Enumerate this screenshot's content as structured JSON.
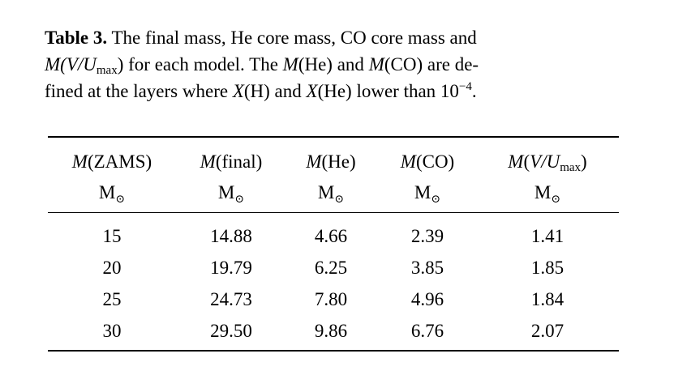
{
  "caption": {
    "label": "Table 3.",
    "line1_text": " The final mass, He core mass, CO core mass and",
    "line2_a": "M",
    "line2_b": "(V/U",
    "line2_c": "max",
    "line2_d": ") for each model. The ",
    "line2_e": "M",
    "line2_f": "(He) and ",
    "line2_g": "M",
    "line2_h": "(CO) are de-",
    "line3_a": "fined at the layers where ",
    "line3_b": "X",
    "line3_c": "(H) and ",
    "line3_d": "X",
    "line3_e": "(He) lower than 10",
    "line3_exp": "−4",
    "line3_end": "."
  },
  "table": {
    "headers": [
      {
        "sym": "M",
        "arg": "(ZAMS)",
        "sub": ""
      },
      {
        "sym": "M",
        "arg": "(final)",
        "sub": ""
      },
      {
        "sym": "M",
        "arg": "(He)",
        "sub": ""
      },
      {
        "sym": "M",
        "arg": "(CO)",
        "sub": ""
      },
      {
        "sym": "M",
        "arg": "(V/U",
        "sub": "max",
        "close": ")"
      }
    ],
    "unit_letter": "M",
    "unit_sub": "⊙",
    "rows": [
      [
        "15",
        "14.88",
        "4.66",
        "2.39",
        "1.41"
      ],
      [
        "20",
        "19.79",
        "6.25",
        "3.85",
        "1.85"
      ],
      [
        "25",
        "24.73",
        "7.80",
        "4.96",
        "1.84"
      ],
      [
        "30",
        "29.50",
        "9.86",
        "6.76",
        "2.07"
      ]
    ]
  }
}
